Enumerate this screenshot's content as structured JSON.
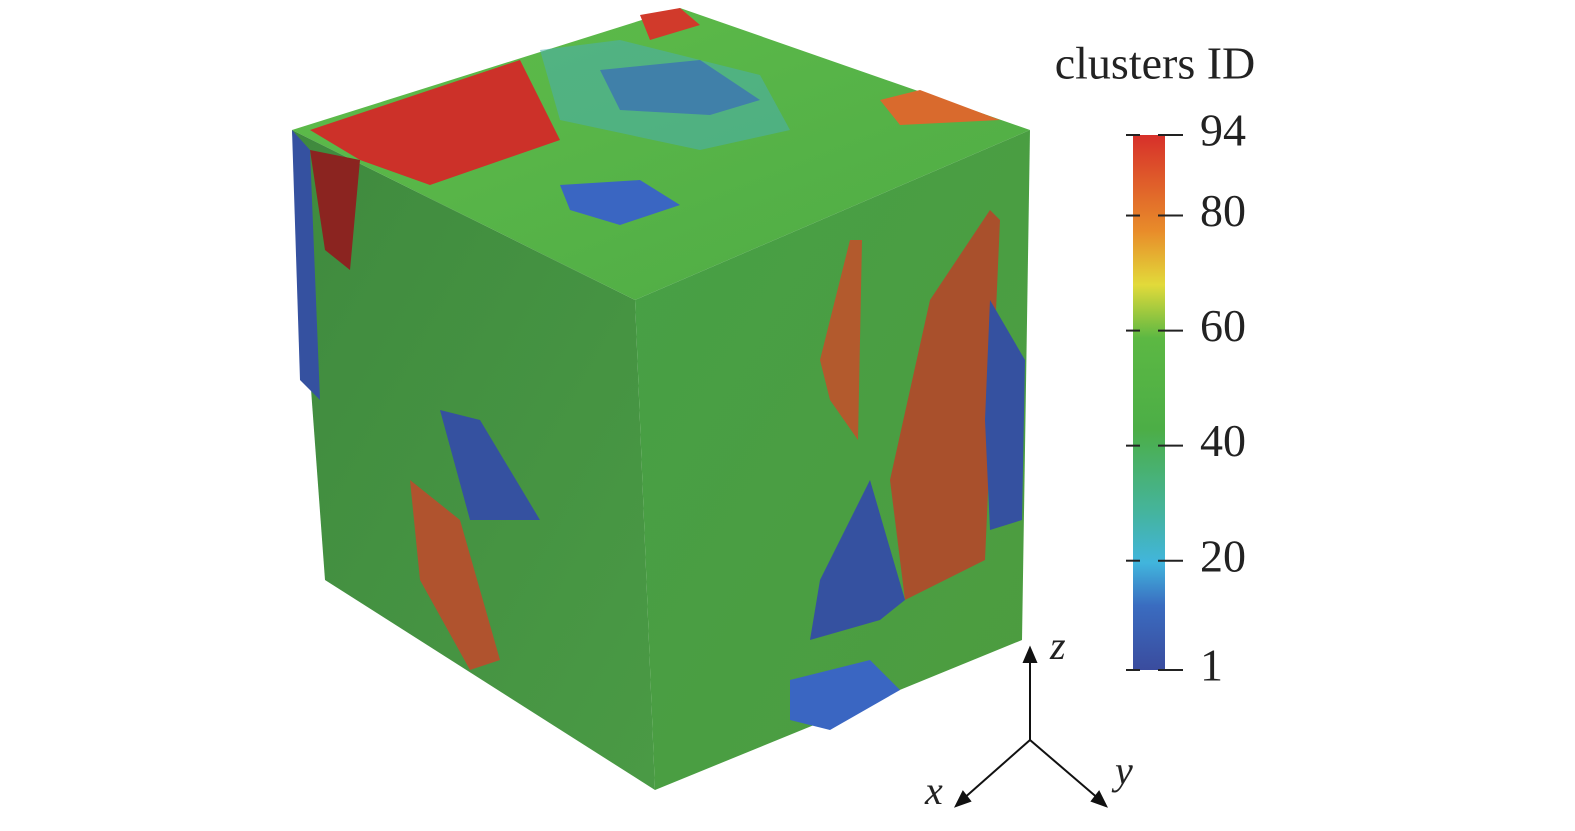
{
  "colorbar": {
    "title": "clusters ID",
    "range": [
      1,
      94
    ],
    "ticks": [
      1,
      20,
      40,
      60,
      80,
      94
    ]
  },
  "axes": {
    "x": "x",
    "y": "y",
    "z": "z"
  }
}
